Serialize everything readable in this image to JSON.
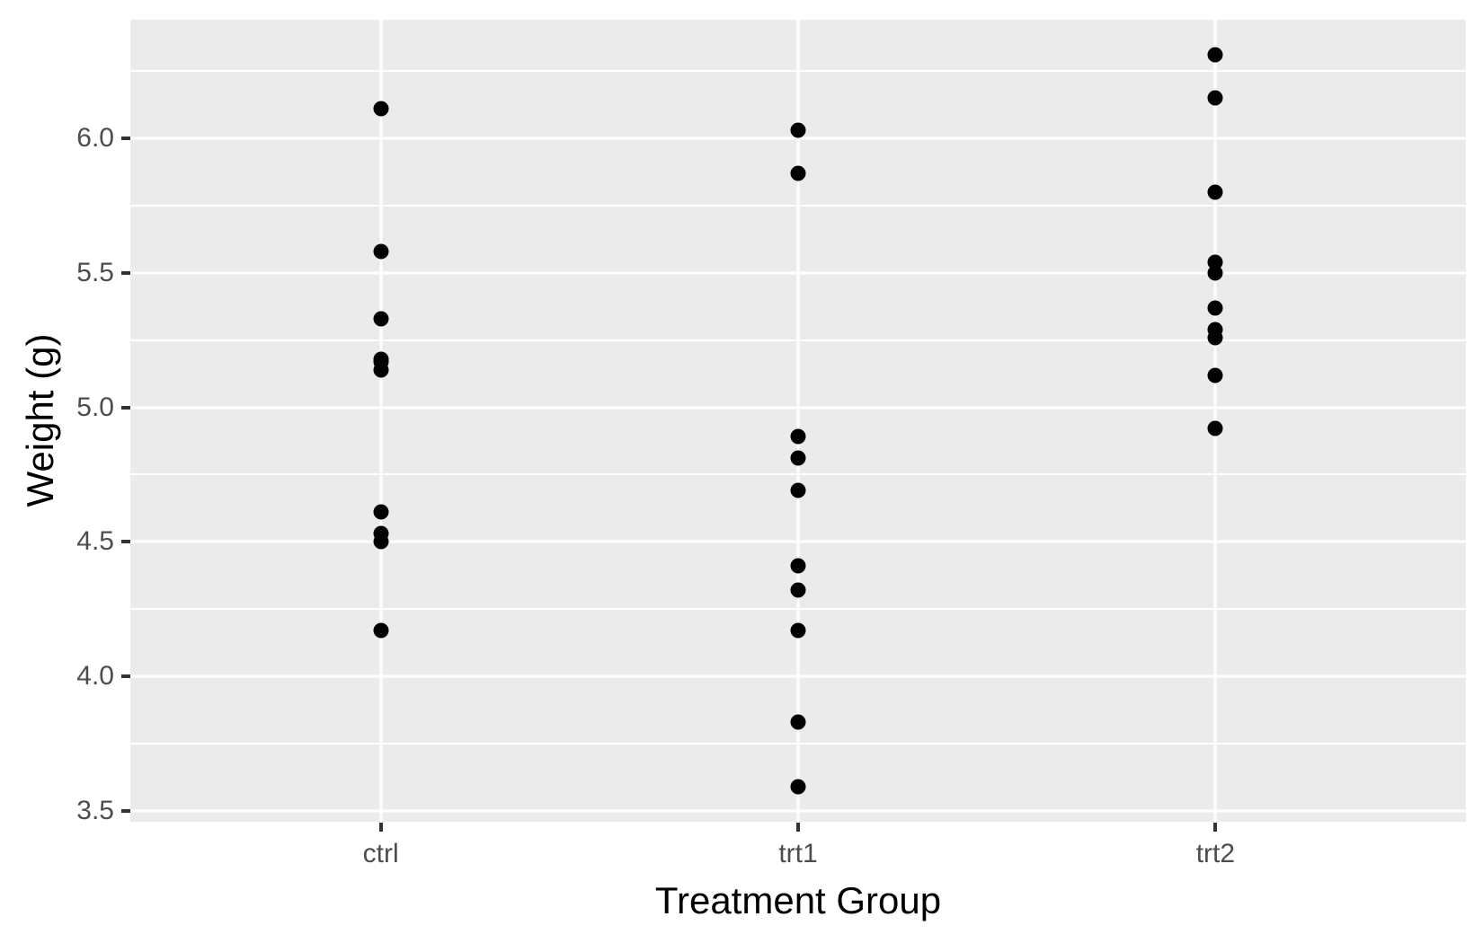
{
  "chart_data": {
    "type": "scatter",
    "title": "",
    "xlabel": "Treatment Group",
    "ylabel": "Weight (g)",
    "categories": [
      "ctrl",
      "trt1",
      "trt2"
    ],
    "series": [
      {
        "name": "ctrl",
        "values": [
          4.17,
          5.58,
          5.18,
          6.11,
          4.5,
          4.61,
          5.17,
          4.53,
          5.33,
          5.14
        ]
      },
      {
        "name": "trt1",
        "values": [
          4.81,
          4.17,
          4.41,
          3.59,
          5.87,
          3.83,
          6.03,
          4.89,
          4.32,
          4.69
        ]
      },
      {
        "name": "trt2",
        "values": [
          6.31,
          5.12,
          5.54,
          5.5,
          5.37,
          5.29,
          4.92,
          6.15,
          5.8,
          5.26
        ]
      }
    ],
    "ylim": [
      3.46,
      6.44
    ],
    "y_major_ticks": [
      3.5,
      4.0,
      4.5,
      5.0,
      5.5,
      6.0
    ],
    "y_tick_labels": [
      "3.5",
      "4.0",
      "4.5",
      "5.0",
      "5.5",
      "6.0"
    ],
    "y_minor_ticks": [
      3.75,
      4.25,
      4.75,
      5.25,
      5.75,
      6.25
    ],
    "grid": true,
    "legend": "none"
  },
  "style": {
    "panel_bg": "#EBEBEB",
    "grid_color": "#FFFFFF",
    "point_color": "#000000",
    "tick_label_color": "#4D4D4D",
    "tick_mark_color": "#333333",
    "axis_title_color": "#000000",
    "background": "#FFFFFF"
  }
}
